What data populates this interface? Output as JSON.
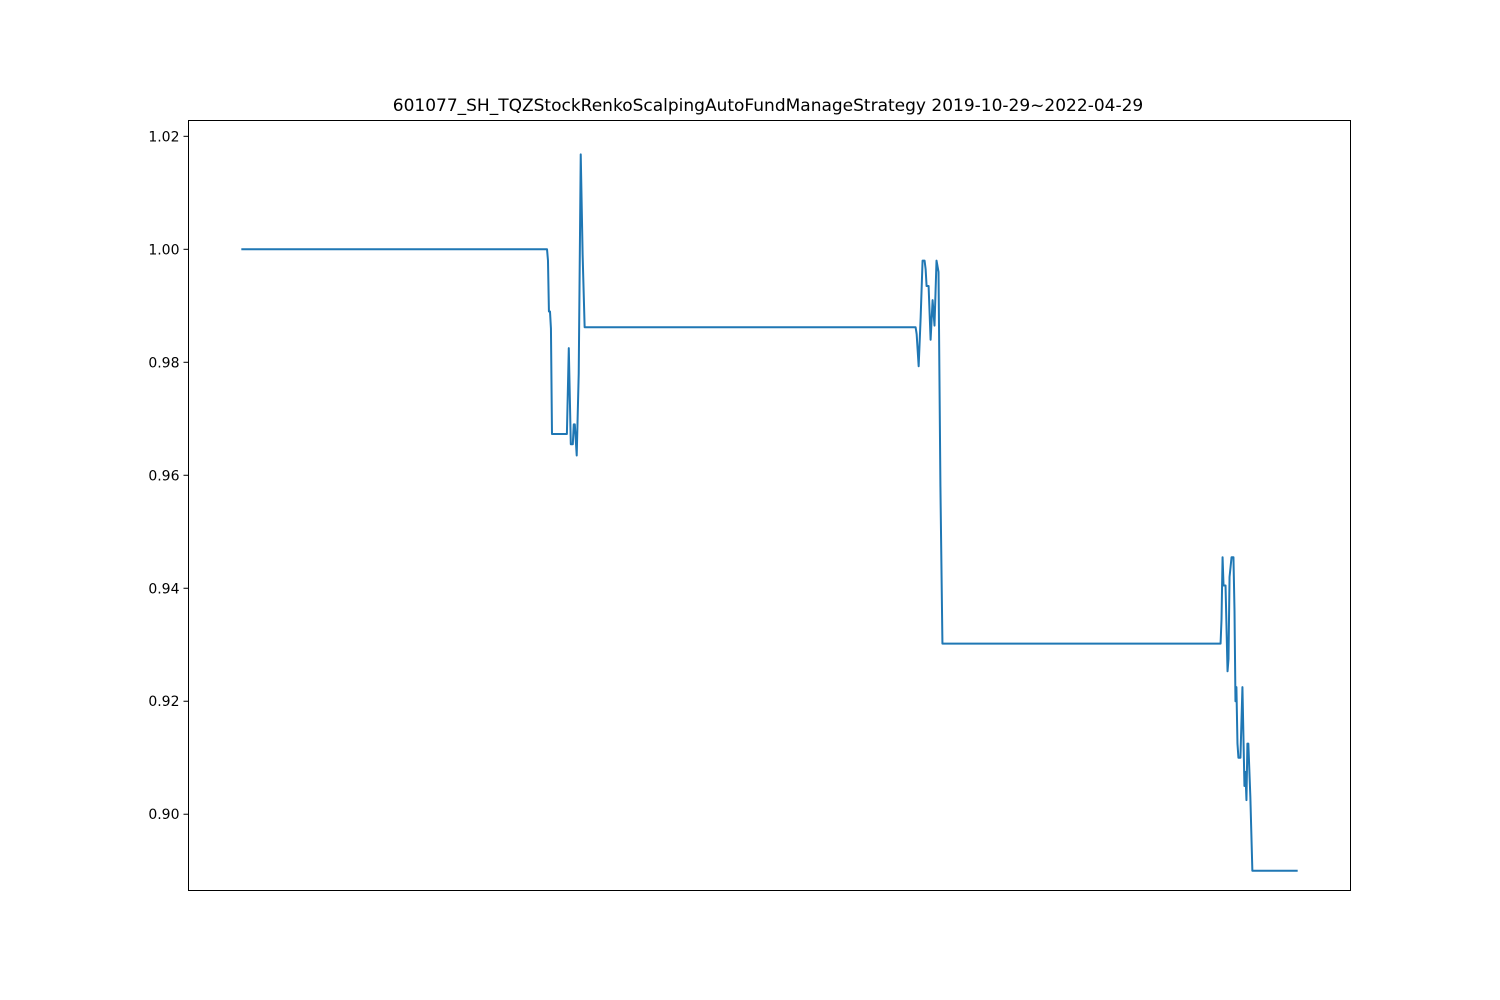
{
  "chart_data": {
    "type": "line",
    "title": "601077_SH_TQZStockRenkoScalpingAutoFundManageStrategy   2019-10-29~2022-04-29",
    "xlabel": "",
    "ylabel": "",
    "x_ticks_visible": false,
    "ylim": [
      0.8865,
      1.0228
    ],
    "y_ticks": [
      {
        "value": 0.9,
        "label": "0.90"
      },
      {
        "value": 0.92,
        "label": "0.92"
      },
      {
        "value": 0.94,
        "label": "0.94"
      },
      {
        "value": 0.96,
        "label": "0.96"
      },
      {
        "value": 0.98,
        "label": "0.98"
      },
      {
        "value": 1.0,
        "label": "1.00"
      },
      {
        "value": 1.02,
        "label": "1.02"
      }
    ],
    "xlim": [
      -0.05,
      1.05
    ],
    "grid": false,
    "legend": "none",
    "line_color": "#1f77b4",
    "series": [
      {
        "name": "",
        "x": [
          0,
          0.2894,
          0.2903,
          0.2912,
          0.2922,
          0.2931,
          0.2941,
          0.3082,
          0.31,
          0.3119,
          0.3138,
          0.3147,
          0.3157,
          0.3175,
          0.3194,
          0.3213,
          0.3231,
          0.325,
          0.3269,
          0.6383,
          0.6393,
          0.6412,
          0.6431,
          0.6449,
          0.6468,
          0.6478,
          0.6487,
          0.6506,
          0.6525,
          0.6544,
          0.6562,
          0.6581,
          0.66,
          0.6618,
          0.6637,
          0.6656,
          0.6675,
          0.6693,
          0.927,
          0.9279,
          0.9289,
          0.9298,
          0.9317,
          0.9336,
          0.9345,
          0.9355,
          0.9374,
          0.9392,
          0.9402,
          0.9411,
          0.942,
          0.943,
          0.9439,
          0.9449,
          0.9458,
          0.9477,
          0.9496,
          0.9505,
          0.9515,
          0.9524,
          0.9533,
          0.9552,
          0.9571,
          0.959,
          0.9608,
          0.9627,
          0.9646,
          1.0
        ],
        "values": [
          1.0,
          1.0,
          0.998,
          0.989,
          0.989,
          0.986,
          0.9673,
          0.9673,
          0.9825,
          0.9655,
          0.9655,
          0.969,
          0.969,
          0.9635,
          0.978,
          1.0168,
          0.999,
          0.9862,
          0.9862,
          0.9862,
          0.985,
          0.9793,
          0.988,
          0.998,
          0.998,
          0.9965,
          0.9935,
          0.9935,
          0.984,
          0.991,
          0.9865,
          0.998,
          0.996,
          0.958,
          0.9302,
          0.9302,
          0.9302,
          0.9302,
          0.9302,
          0.9345,
          0.9455,
          0.9405,
          0.9405,
          0.9253,
          0.9275,
          0.942,
          0.9455,
          0.9455,
          0.936,
          0.92,
          0.9225,
          0.9125,
          0.91,
          0.91,
          0.91,
          0.9225,
          0.905,
          0.9075,
          0.9025,
          0.9125,
          0.9125,
          0.903,
          0.89,
          0.89,
          0.89,
          0.89,
          0.89,
          0.89
        ]
      }
    ]
  }
}
